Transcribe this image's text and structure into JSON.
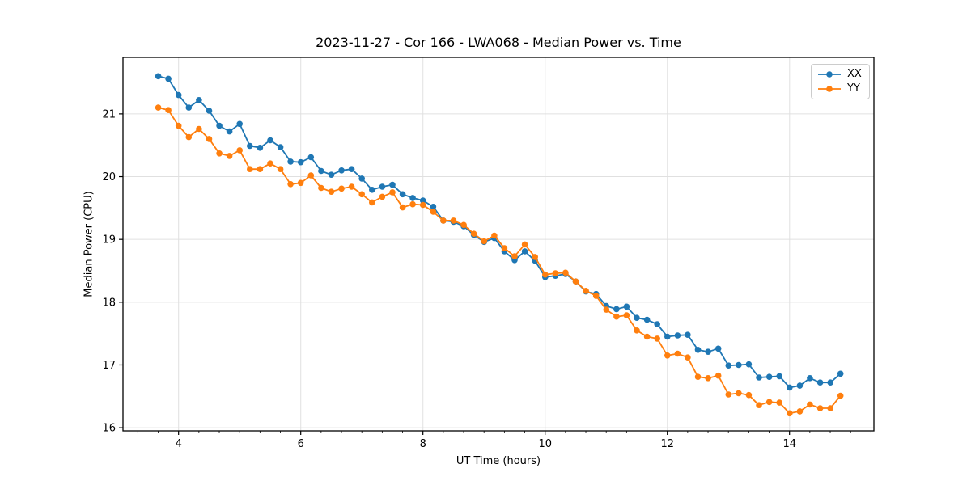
{
  "chart_data": {
    "type": "line",
    "title": "2023-11-27 - Cor 166 - LWA068 - Median Power vs. Time",
    "xlabel": "UT Time (hours)",
    "ylabel": "Median Power (CPU)",
    "grid": true,
    "legend_position": "upper right",
    "x_axis": {
      "ticks": [
        4,
        6,
        8,
        10,
        12,
        14
      ],
      "minor_tick_step": 0.3333,
      "range": [
        3.09,
        15.38
      ]
    },
    "y_axis": {
      "ticks": [
        16,
        17,
        18,
        19,
        20,
        21
      ],
      "range": [
        15.95,
        21.9
      ]
    },
    "x": [
      3.667,
      3.833,
      4.0,
      4.167,
      4.333,
      4.5,
      4.667,
      4.833,
      5.0,
      5.167,
      5.333,
      5.5,
      5.667,
      5.833,
      6.0,
      6.167,
      6.333,
      6.5,
      6.667,
      6.833,
      7.0,
      7.167,
      7.333,
      7.5,
      7.667,
      7.833,
      8.0,
      8.167,
      8.333,
      8.5,
      8.667,
      8.833,
      9.0,
      9.167,
      9.333,
      9.5,
      9.667,
      9.833,
      10.0,
      10.167,
      10.333,
      10.5,
      10.667,
      10.833,
      11.0,
      11.167,
      11.333,
      11.5,
      11.667,
      11.833,
      12.0,
      12.167,
      12.333,
      12.5,
      12.667,
      12.833,
      13.0,
      13.167,
      13.333,
      13.5,
      13.667,
      13.833,
      14.0,
      14.167,
      14.333,
      14.5,
      14.667,
      14.833
    ],
    "series": [
      {
        "name": "XX",
        "color": "#1f77b4",
        "values": [
          21.6,
          21.56,
          21.3,
          21.1,
          21.22,
          21.05,
          20.81,
          20.72,
          20.84,
          20.49,
          20.46,
          20.58,
          20.47,
          20.24,
          20.23,
          20.31,
          20.09,
          20.03,
          20.1,
          20.12,
          19.97,
          19.79,
          19.84,
          19.87,
          19.72,
          19.66,
          19.62,
          19.52,
          19.3,
          19.28,
          19.21,
          19.07,
          18.96,
          19.02,
          18.81,
          18.67,
          18.81,
          18.66,
          18.4,
          18.42,
          18.45,
          18.33,
          18.17,
          18.13,
          17.94,
          17.89,
          17.93,
          17.75,
          17.72,
          17.65,
          17.45,
          17.47,
          17.48,
          17.24,
          17.21,
          17.26,
          16.99,
          17.0,
          17.01,
          16.8,
          16.81,
          16.82,
          16.64,
          16.67,
          16.79,
          16.72,
          16.72,
          16.86
        ]
      },
      {
        "name": "YY",
        "color": "#ff7f0e",
        "values": [
          21.1,
          21.06,
          20.81,
          20.63,
          20.76,
          20.6,
          20.37,
          20.33,
          20.42,
          20.12,
          20.12,
          20.21,
          20.12,
          19.88,
          19.9,
          20.02,
          19.82,
          19.76,
          19.81,
          19.84,
          19.72,
          19.59,
          19.68,
          19.75,
          19.51,
          19.56,
          19.55,
          19.44,
          19.3,
          19.3,
          19.23,
          19.09,
          18.97,
          19.06,
          18.86,
          18.73,
          18.92,
          18.72,
          18.44,
          18.46,
          18.47,
          18.33,
          18.18,
          18.1,
          17.88,
          17.77,
          17.79,
          17.55,
          17.45,
          17.42,
          17.15,
          17.18,
          17.12,
          16.81,
          16.79,
          16.83,
          16.53,
          16.55,
          16.52,
          16.36,
          16.41,
          16.4,
          16.23,
          16.26,
          16.37,
          16.31,
          16.31,
          16.51
        ]
      }
    ]
  }
}
